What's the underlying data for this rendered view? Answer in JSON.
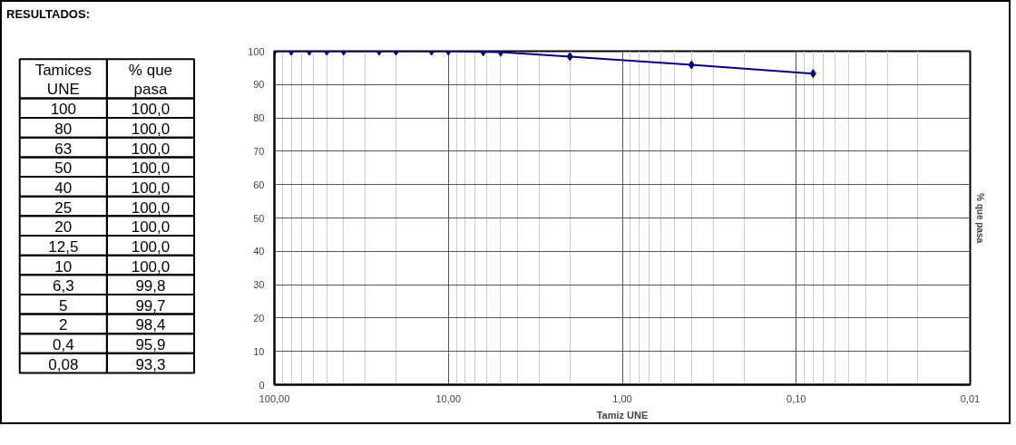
{
  "chart_data": [
    {
      "type": "other",
      "title": "RESULTADOS:",
      "annotations": [
        "Tamices UNE",
        "% que pasa",
        "100",
        "100,0",
        "80",
        "100,0",
        "63",
        "100,0",
        "50",
        "100,0",
        "40",
        "100,0",
        "25",
        "100,0",
        "20",
        "100,0",
        "12,5",
        "100,0",
        "10",
        "100,0",
        "6,3",
        "99,8",
        "5",
        "99,7",
        "2",
        "98,4",
        "0,4",
        "95,9",
        "0,08",
        "93,3"
      ]
    },
    {
      "type": "line",
      "xlabel": "Tamiz UNE",
      "ylabel": "% que pasa",
      "x": [
        100,
        80,
        63,
        50,
        40,
        25,
        20,
        12.5,
        10,
        6.3,
        5,
        2,
        0.4,
        0.08
      ],
      "series": [
        {
          "color": "#000080",
          "values": [
            100.0,
            100.0,
            100.0,
            100.0,
            100.0,
            100.0,
            100.0,
            100.0,
            100.0,
            99.8,
            99.7,
            98.4,
            95.9,
            93.3
          ]
        }
      ],
      "log": "x",
      "xlim": [
        100,
        0.01
      ],
      "xticks": [
        {
          "value": 100,
          "label": "100,00"
        },
        {
          "value": 10,
          "label": "10,00"
        },
        {
          "value": 1,
          "label": "1,00"
        },
        {
          "value": 0.1,
          "label": "0,10"
        },
        {
          "value": 0.01,
          "label": "0,01"
        }
      ],
      "ylim": [
        0,
        100
      ],
      "yticks": [
        0,
        10,
        20,
        30,
        40,
        50,
        60,
        70,
        80,
        90,
        100
      ],
      "grid": true,
      "marker": "diamond",
      "line_style": "solid"
    }
  ]
}
